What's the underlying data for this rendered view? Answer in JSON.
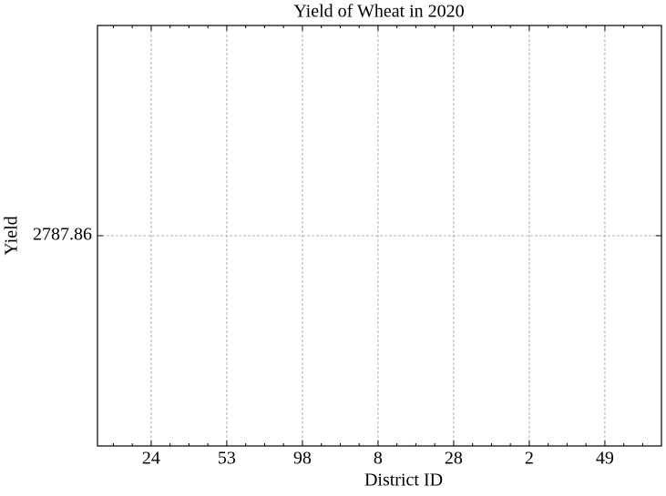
{
  "chart_data": {
    "type": "line",
    "title": "Yield of Wheat in 2020",
    "x_label": "District ID",
    "y_label": "Yield",
    "categories": [
      "24",
      "53",
      "98",
      "8",
      "28",
      "2",
      "49"
    ],
    "ylim": [
      2787.85,
      2787.87
    ],
    "yticks": [
      {
        "value": 2787.86,
        "label": "2787.86"
      }
    ],
    "grid": true
  }
}
